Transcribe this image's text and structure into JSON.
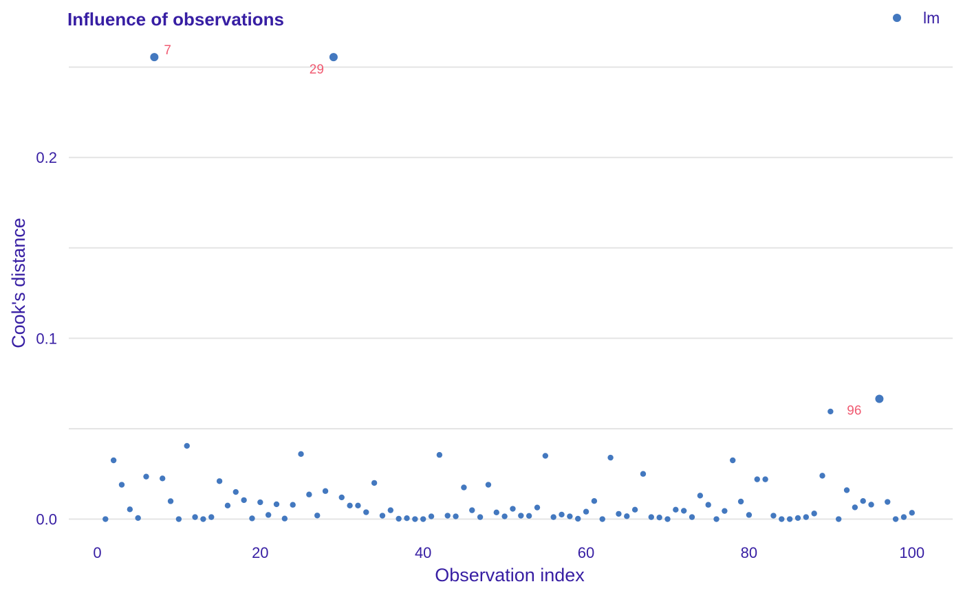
{
  "chart_data": {
    "type": "scatter",
    "title": "Influence of observations",
    "xlabel": "Observation index",
    "ylabel": "Cook's distance",
    "xlim": [
      -3.5,
      105
    ],
    "ylim": [
      -0.015,
      0.27
    ],
    "x_ticks": [
      0,
      20,
      40,
      60,
      80,
      100
    ],
    "x_tick_labels": [
      "0",
      "20",
      "40",
      "60",
      "80",
      "100"
    ],
    "y_ticks": [
      0,
      0.1,
      0.2
    ],
    "y_tick_labels": [
      "0.0",
      "0.1",
      "0.2"
    ],
    "y_gridlines": [
      0,
      0.05,
      0.1,
      0.15,
      0.2,
      0.25
    ],
    "grid": "horizontal",
    "legend_position": "top-right",
    "series": [
      {
        "name": "lm",
        "color": "#4378bf",
        "x": [
          1,
          2,
          3,
          4,
          5,
          6,
          7,
          8,
          9,
          10,
          11,
          12,
          13,
          14,
          15,
          16,
          17,
          18,
          19,
          20,
          21,
          22,
          23,
          24,
          25,
          26,
          27,
          28,
          29,
          30,
          31,
          32,
          33,
          34,
          35,
          36,
          37,
          38,
          39,
          40,
          41,
          42,
          43,
          44,
          45,
          46,
          47,
          48,
          49,
          50,
          51,
          52,
          53,
          54,
          55,
          56,
          57,
          58,
          59,
          60,
          61,
          62,
          63,
          64,
          65,
          66,
          67,
          68,
          69,
          70,
          71,
          72,
          73,
          74,
          75,
          76,
          77,
          78,
          79,
          80,
          81,
          82,
          83,
          84,
          85,
          86,
          87,
          88,
          89,
          90,
          91,
          92,
          93,
          94,
          95,
          96,
          97,
          98,
          99,
          100
        ],
        "y": [
          0.0,
          0.0325,
          0.019,
          0.0054,
          0.0006,
          0.0235,
          0.2555,
          0.0225,
          0.0099,
          0.0,
          0.0405,
          0.0011,
          0.0,
          0.0011,
          0.021,
          0.0075,
          0.015,
          0.0105,
          0.0004,
          0.0093,
          0.0023,
          0.0082,
          0.0003,
          0.0079,
          0.036,
          0.0136,
          0.002,
          0.0155,
          0.2555,
          0.012,
          0.0075,
          0.0075,
          0.0038,
          0.02,
          0.0019,
          0.0049,
          0.0002,
          0.0005,
          0.0,
          0.0,
          0.0015,
          0.0355,
          0.0019,
          0.0015,
          0.0175,
          0.0049,
          0.0011,
          0.019,
          0.0037,
          0.0015,
          0.0057,
          0.0019,
          0.0018,
          0.0064,
          0.035,
          0.0011,
          0.0025,
          0.0015,
          0.0002,
          0.0041,
          0.01,
          0.0,
          0.034,
          0.0029,
          0.0016,
          0.0052,
          0.025,
          0.0011,
          0.0009,
          0.0,
          0.0052,
          0.0046,
          0.0011,
          0.013,
          0.0079,
          0.0,
          0.0045,
          0.0325,
          0.0097,
          0.0023,
          0.022,
          0.022,
          0.0019,
          0.0,
          0.0,
          0.0006,
          0.0011,
          0.0031,
          0.024,
          0.0595,
          0.0,
          0.016,
          0.0065,
          0.01,
          0.008,
          0.0665,
          0.0095,
          0.0,
          0.0011,
          0.0035
        ]
      }
    ],
    "annotations": [
      {
        "x": 7,
        "y": 0.2555,
        "text": "7"
      },
      {
        "x": 29,
        "y": 0.2555,
        "text": "29"
      },
      {
        "x": 96,
        "y": 0.0665,
        "text": "96"
      }
    ],
    "annotation_color": "#f05a71"
  }
}
